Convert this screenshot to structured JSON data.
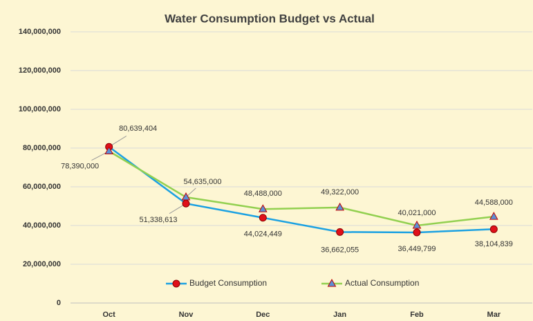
{
  "chart_data": {
    "type": "line",
    "title": "Water Consumption Budget vs Actual",
    "categories": [
      "Oct",
      "Nov",
      "Dec",
      "Jan",
      "Feb",
      "Mar"
    ],
    "series": [
      {
        "name": "Budget Consumption",
        "color": "#1ba1e2",
        "marker_color": "#e0101a",
        "values": [
          80639404,
          51338613,
          44024449,
          36662055,
          36449799,
          38104839
        ],
        "value_labels": [
          "80,639,404",
          "51,338,613",
          "44,024,449",
          "36,662,055",
          "36,449,799",
          "38,104,839"
        ]
      },
      {
        "name": "Actual Consumption",
        "color": "#92d050",
        "marker_color": "#5b8fd5",
        "values": [
          78390000,
          54635000,
          48488000,
          49322000,
          40021000,
          44588000
        ],
        "value_labels": [
          "78,390,000",
          "54,635,000",
          "48,488,000",
          "49,322,000",
          "40,021,000",
          "44,588,000"
        ]
      }
    ],
    "ylim": [
      0,
      140000000
    ],
    "yticks": [
      {
        "value": 0,
        "label": "0"
      },
      {
        "value": 20000000,
        "label": "20,000,000"
      },
      {
        "value": 40000000,
        "label": "40,000,000"
      },
      {
        "value": 60000000,
        "label": "60,000,000"
      },
      {
        "value": 80000000,
        "label": "80,000,000"
      },
      {
        "value": 100000000,
        "label": "100,000,000"
      },
      {
        "value": 120000000,
        "label": "120,000,000"
      },
      {
        "value": 140000000,
        "label": "140,000,000"
      }
    ],
    "grid": true,
    "legend": "bottom",
    "background": "#fdf6d3"
  }
}
